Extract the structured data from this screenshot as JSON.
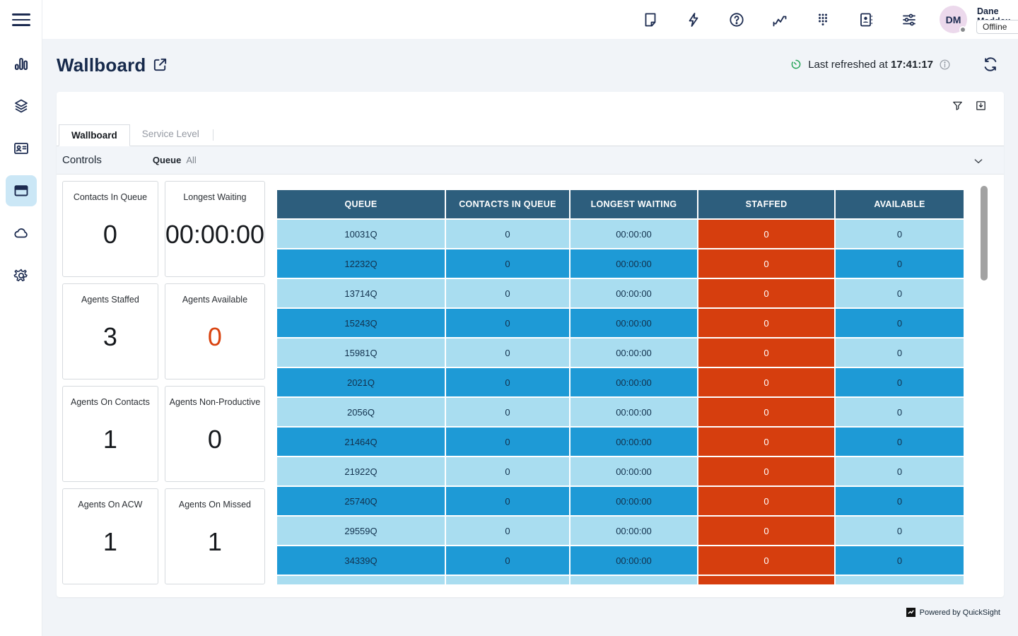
{
  "topbar": {
    "icons": [
      "notes-icon",
      "quick-actions-icon",
      "help-icon",
      "metrics-icon",
      "dialpad-icon",
      "directory-icon",
      "preferences-icon"
    ],
    "user": {
      "initials": "DM",
      "name": "Dane Maddox",
      "status": "Offline"
    }
  },
  "sidebar": {
    "items": [
      "analytics",
      "routing",
      "contacts",
      "wallboard",
      "cloud",
      "settings"
    ],
    "active": "wallboard"
  },
  "page": {
    "title": "Wallboard",
    "last_refreshed_label": "Last refreshed at ",
    "last_refreshed_time": "17:41:17"
  },
  "panel": {
    "tabs": [
      {
        "label": "Wallboard",
        "active": true
      },
      {
        "label": "Service Level",
        "active": false
      }
    ],
    "controls": {
      "title": "Controls",
      "queue_label": "Queue",
      "queue_value": "All"
    }
  },
  "kpis": [
    {
      "label": "Contacts In Queue",
      "value": "0"
    },
    {
      "label": "Longest Waiting",
      "value": "00:00:00"
    },
    {
      "label": "Agents Staffed",
      "value": "3"
    },
    {
      "label": "Agents Available",
      "value": "0",
      "accent": true
    },
    {
      "label": "Agents On Contacts",
      "value": "1"
    },
    {
      "label": "Agents Non-Productive",
      "value": "0"
    },
    {
      "label": "Agents On ACW",
      "value": "1"
    },
    {
      "label": "Agents On Missed",
      "value": "1"
    }
  ],
  "table": {
    "columns": [
      "QUEUE",
      "CONTACTS IN QUEUE",
      "LONGEST WAITING",
      "STAFFED",
      "AVAILABLE"
    ],
    "rows": [
      {
        "queue": "10031Q",
        "contacts_in_queue": "0",
        "longest_waiting": "00:00:00",
        "staffed": "0",
        "available": "0"
      },
      {
        "queue": "12232Q",
        "contacts_in_queue": "0",
        "longest_waiting": "00:00:00",
        "staffed": "0",
        "available": "0"
      },
      {
        "queue": "13714Q",
        "contacts_in_queue": "0",
        "longest_waiting": "00:00:00",
        "staffed": "0",
        "available": "0"
      },
      {
        "queue": "15243Q",
        "contacts_in_queue": "0",
        "longest_waiting": "00:00:00",
        "staffed": "0",
        "available": "0"
      },
      {
        "queue": "15981Q",
        "contacts_in_queue": "0",
        "longest_waiting": "00:00:00",
        "staffed": "0",
        "available": "0"
      },
      {
        "queue": "2021Q",
        "contacts_in_queue": "0",
        "longest_waiting": "00:00:00",
        "staffed": "0",
        "available": "0"
      },
      {
        "queue": "2056Q",
        "contacts_in_queue": "0",
        "longest_waiting": "00:00:00",
        "staffed": "0",
        "available": "0"
      },
      {
        "queue": "21464Q",
        "contacts_in_queue": "0",
        "longest_waiting": "00:00:00",
        "staffed": "0",
        "available": "0"
      },
      {
        "queue": "21922Q",
        "contacts_in_queue": "0",
        "longest_waiting": "00:00:00",
        "staffed": "0",
        "available": "0"
      },
      {
        "queue": "25740Q",
        "contacts_in_queue": "0",
        "longest_waiting": "00:00:00",
        "staffed": "0",
        "available": "0"
      },
      {
        "queue": "29559Q",
        "contacts_in_queue": "0",
        "longest_waiting": "00:00:00",
        "staffed": "0",
        "available": "0"
      },
      {
        "queue": "34339Q",
        "contacts_in_queue": "0",
        "longest_waiting": "00:00:00",
        "staffed": "0",
        "available": "0"
      },
      {
        "queue": "",
        "contacts_in_queue": "",
        "longest_waiting": "",
        "staffed": "",
        "available": ""
      }
    ]
  },
  "footer": {
    "powered_by": "Powered by QuickSight"
  },
  "colors": {
    "header": "#2d5e7d",
    "row_light": "#a9ddf0",
    "row_dark": "#1e9ad6",
    "staffed": "#d63e0e",
    "accent_orange": "#d9430f",
    "timer_green": "#26a558",
    "icon_navy": "#1c2b50"
  }
}
